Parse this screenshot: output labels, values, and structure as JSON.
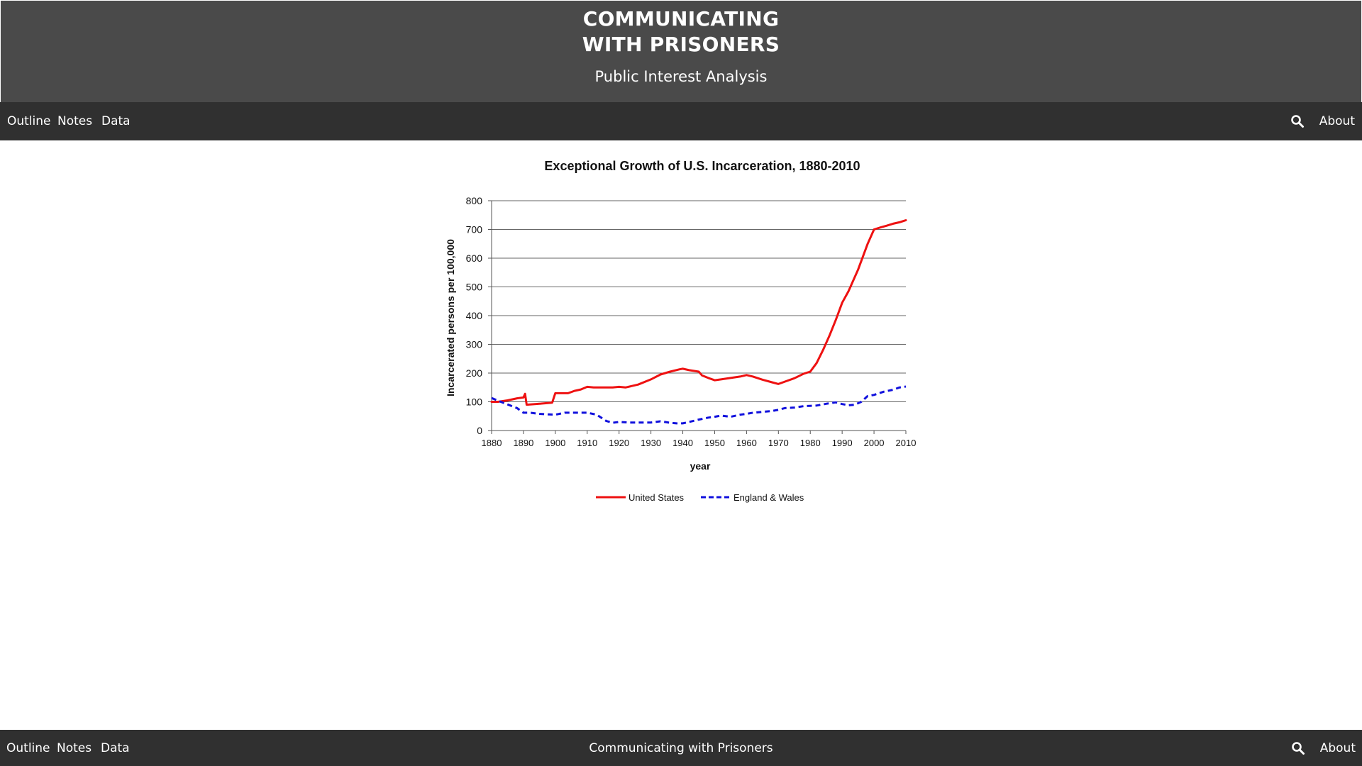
{
  "header": {
    "title_line1": "COMMUNICATING",
    "title_line2": "WITH PRISONERS",
    "subtitle": "Public Interest Analysis"
  },
  "nav": {
    "items": [
      "Outline",
      "Notes",
      "Data"
    ],
    "about": "About",
    "search_icon": "search-icon"
  },
  "footer": {
    "items": [
      "Outline",
      "Notes",
      "Data"
    ],
    "center": "Communicating with Prisoners",
    "about": "About"
  },
  "colors": {
    "header_bg": "#4a4a4a",
    "nav_bg": "#303030",
    "us_series": "#ee1111",
    "ew_series": "#1010dd"
  },
  "chart_data": {
    "type": "line",
    "title": "Exceptional Growth of U.S. Incarceration, 1880-2010",
    "xlabel": "year",
    "ylabel": "Incarcerated persons per 100,000",
    "xlim": [
      1880,
      2010
    ],
    "ylim": [
      0,
      800
    ],
    "xticks": [
      1880,
      1890,
      1900,
      1910,
      1920,
      1930,
      1940,
      1950,
      1960,
      1970,
      1980,
      1990,
      2000,
      2010
    ],
    "yticks": [
      0,
      100,
      200,
      300,
      400,
      500,
      600,
      700,
      800
    ],
    "grid": "horizontal",
    "legend_position": "bottom",
    "series": [
      {
        "name": "United States",
        "style": "solid",
        "color": "#ee1111",
        "x": [
          1880,
          1882,
          1885,
          1888,
          1890,
          1890.5,
          1891,
          1895,
          1898,
          1899,
          1900,
          1904,
          1906,
          1908,
          1910,
          1912,
          1914,
          1916,
          1918,
          1920,
          1922,
          1926,
          1930,
          1933,
          1936,
          1939,
          1940,
          1942,
          1945,
          1946,
          1948,
          1950,
          1952,
          1955,
          1958,
          1960,
          1962,
          1965,
          1968,
          1970,
          1972,
          1975,
          1978,
          1980,
          1982,
          1984,
          1986,
          1988,
          1990,
          1992,
          1995,
          1998,
          2000,
          2002,
          2004,
          2006,
          2008,
          2010
        ],
        "y": [
          100,
          100,
          105,
          112,
          115,
          128,
          90,
          93,
          96,
          97,
          130,
          130,
          138,
          143,
          152,
          150,
          150,
          150,
          150,
          152,
          150,
          160,
          178,
          195,
          205,
          213,
          215,
          210,
          205,
          192,
          183,
          175,
          178,
          183,
          188,
          193,
          188,
          177,
          168,
          162,
          170,
          182,
          198,
          205,
          235,
          280,
          330,
          385,
          445,
          485,
          560,
          650,
          700,
          707,
          713,
          720,
          725,
          732
        ]
      },
      {
        "name": "England & Wales",
        "style": "dashed",
        "color": "#1010dd",
        "x": [
          1880,
          1884,
          1888,
          1890,
          1892,
          1895,
          1898,
          1900,
          1903,
          1907,
          1910,
          1913,
          1916,
          1918,
          1920,
          1923,
          1926,
          1930,
          1933,
          1936,
          1938,
          1940,
          1942,
          1945,
          1948,
          1950,
          1952,
          1955,
          1958,
          1960,
          1962,
          1965,
          1968,
          1970,
          1972,
          1975,
          1978,
          1980,
          1982,
          1985,
          1988,
          1990,
          1992,
          1994,
          1996,
          1998,
          2000,
          2003,
          2006,
          2008,
          2010
        ],
        "y": [
          113,
          95,
          78,
          62,
          62,
          58,
          56,
          55,
          62,
          62,
          62,
          55,
          33,
          27,
          30,
          28,
          28,
          28,
          32,
          27,
          25,
          25,
          30,
          38,
          45,
          48,
          52,
          48,
          55,
          58,
          62,
          65,
          68,
          72,
          78,
          80,
          85,
          86,
          87,
          93,
          98,
          92,
          88,
          90,
          100,
          120,
          124,
          135,
          142,
          150,
          153
        ]
      }
    ]
  }
}
